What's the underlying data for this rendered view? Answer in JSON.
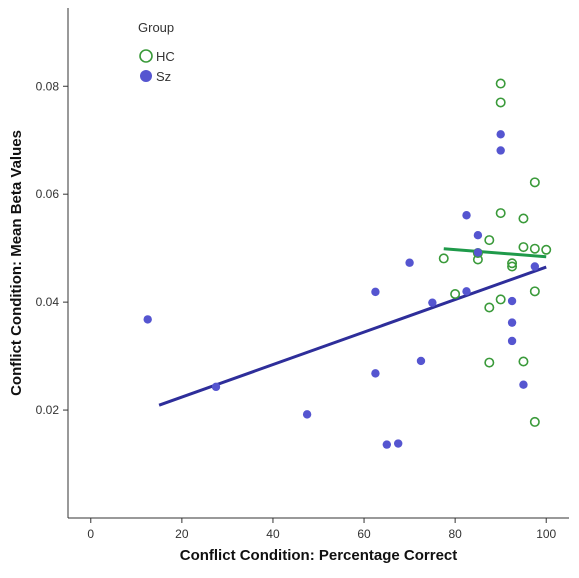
{
  "chart_data": {
    "type": "scatter",
    "xlabel": "Conflict Condition: Percentage Correct",
    "ylabel": "Conflict Condition: Mean Beta Values",
    "xlim": [
      -5,
      105
    ],
    "ylim": [
      0.0,
      0.0945
    ],
    "x_ticks": [
      0,
      20,
      40,
      60,
      80,
      100
    ],
    "x_tick_labels": [
      "0",
      "20",
      "40",
      "60",
      "80",
      "100"
    ],
    "y_ticks": [
      0.02,
      0.04,
      0.06,
      0.08
    ],
    "y_tick_labels": [
      "0.02",
      "0.04",
      "0.06",
      "0.08"
    ],
    "grid": false,
    "legend": {
      "title": "Group",
      "position": "top-left",
      "entries": [
        {
          "label": "HC",
          "series": 0
        },
        {
          "label": "Sz",
          "series": 1
        }
      ]
    },
    "series": [
      {
        "name": "HC",
        "color": "#3a9a3a",
        "marker": "open-circle",
        "points": [
          [
            90,
            0.0805
          ],
          [
            90,
            0.077
          ],
          [
            97.5,
            0.0622
          ],
          [
            90,
            0.0565
          ],
          [
            95,
            0.0555
          ],
          [
            87.5,
            0.0515
          ],
          [
            95,
            0.0502
          ],
          [
            97.5,
            0.0499
          ],
          [
            100,
            0.0497
          ],
          [
            85,
            0.0491
          ],
          [
            77.5,
            0.0481
          ],
          [
            85,
            0.0479
          ],
          [
            92.5,
            0.0472
          ],
          [
            92.5,
            0.0466
          ],
          [
            80,
            0.0415
          ],
          [
            97.5,
            0.042
          ],
          [
            90,
            0.0405
          ],
          [
            87.5,
            0.039
          ],
          [
            87.5,
            0.0288
          ],
          [
            95,
            0.029
          ],
          [
            97.5,
            0.0178
          ]
        ],
        "fit": {
          "x": [
            77.5,
            100
          ],
          "y": [
            0.0499,
            0.0484
          ]
        }
      },
      {
        "name": "Sz",
        "color": "#5555d0",
        "marker": "filled-circle",
        "points": [
          [
            12.5,
            0.0368
          ],
          [
            27.5,
            0.0243
          ],
          [
            47.5,
            0.0192
          ],
          [
            62.5,
            0.0419
          ],
          [
            62.5,
            0.0268
          ],
          [
            65,
            0.0136
          ],
          [
            67.5,
            0.0138
          ],
          [
            70,
            0.0473
          ],
          [
            72.5,
            0.0291
          ],
          [
            75,
            0.0399
          ],
          [
            82.5,
            0.0561
          ],
          [
            82.5,
            0.042
          ],
          [
            85,
            0.0524
          ],
          [
            85,
            0.0492
          ],
          [
            90,
            0.0711
          ],
          [
            90,
            0.0681
          ],
          [
            92.5,
            0.0402
          ],
          [
            92.5,
            0.0362
          ],
          [
            92.5,
            0.0328
          ],
          [
            95,
            0.0247
          ],
          [
            97.5,
            0.0466
          ]
        ],
        "fit": {
          "x": [
            15,
            100
          ],
          "y": [
            0.0209,
            0.0465
          ]
        }
      }
    ]
  }
}
